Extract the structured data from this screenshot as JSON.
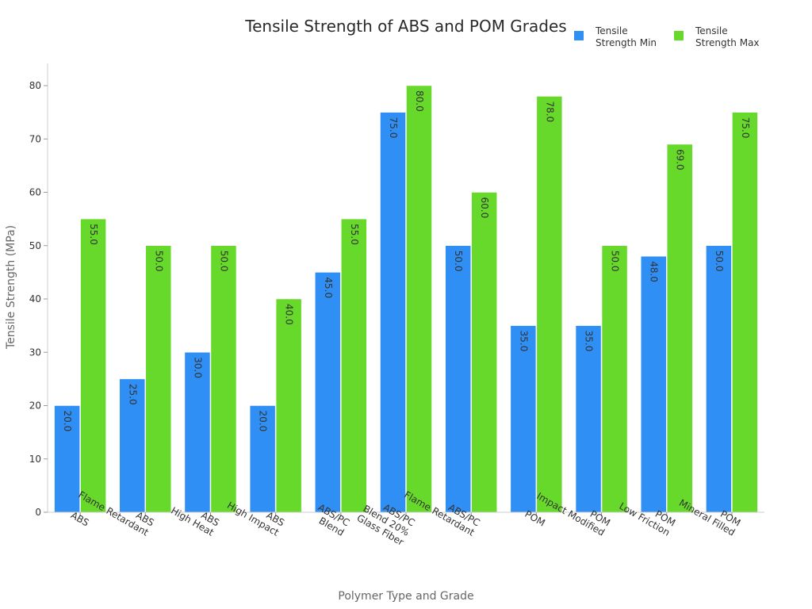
{
  "chart_data": {
    "type": "bar",
    "title": "Tensile Strength of ABS and POM Grades",
    "xlabel": "Polymer Type and Grade",
    "ylabel": "Tensile Strength (MPa)",
    "ylim": [
      0,
      80
    ],
    "yticks": [
      0,
      10,
      20,
      30,
      40,
      50,
      60,
      70,
      80
    ],
    "grid": false,
    "legend_position": "top-right",
    "categories": [
      "ABS",
      "ABS\nFlame Retardant",
      "ABS\nHigh Heat",
      "ABS\nHigh Impact",
      "ABS/PC\nBlend",
      "ABS/PC\nBlend 20%\nGlass Fiber",
      "ABS/PC\nFlame Retardant",
      "POM",
      "POM\nImpact Modified",
      "POM\nLow Friction",
      "POM\nMineral Filled"
    ],
    "series": [
      {
        "name": "Tensile\nStrength Min",
        "color": "#2f8ff5",
        "values": [
          20,
          25,
          30,
          20,
          45,
          75,
          50,
          35,
          35,
          48,
          50
        ],
        "labels": [
          "20.0",
          "25.0",
          "30.0",
          "20.0",
          "45.0",
          "75.0",
          "50.0",
          "35.0",
          "35.0",
          "48.0",
          "50.0"
        ]
      },
      {
        "name": "Tensile\nStrength Max",
        "color": "#66d92a",
        "values": [
          55,
          50,
          50,
          40,
          55,
          80,
          60,
          78,
          50,
          69,
          75
        ],
        "labels": [
          "55.0",
          "50.0",
          "50.0",
          "40.0",
          "55.0",
          "80.0",
          "60.0",
          "78.0",
          "50.0",
          "69.0",
          "75.0"
        ]
      }
    ]
  }
}
